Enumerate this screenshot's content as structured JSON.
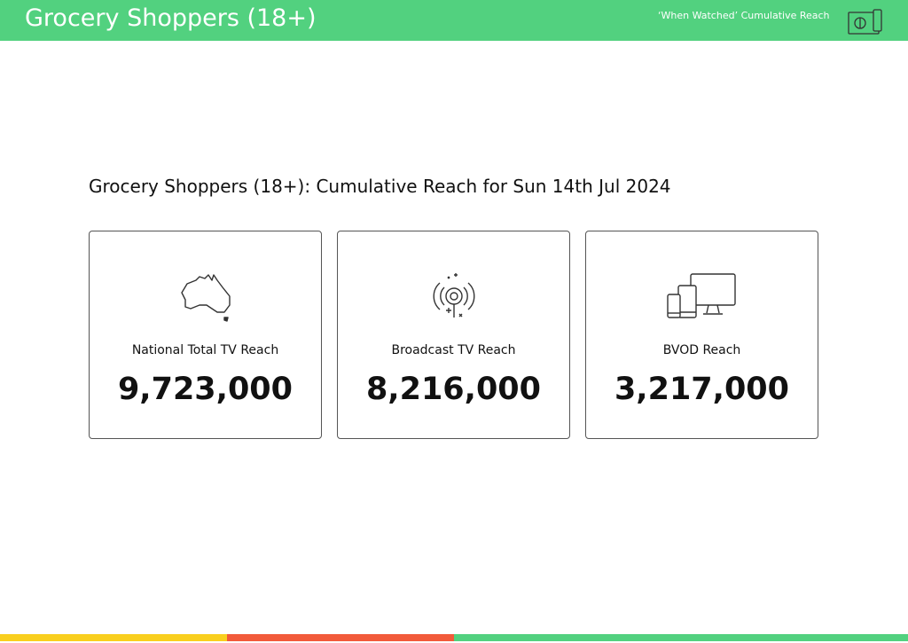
{
  "header": {
    "title": "Grocery Shoppers (18+)",
    "subtitle": "‘When Watched’ Cumulative Reach"
  },
  "section": {
    "title": "Grocery Shoppers (18+): Cumulative Reach for Sun 14th Jul 2024"
  },
  "cards": [
    {
      "label": "National Total TV Reach",
      "value": "9,723,000"
    },
    {
      "label": "Broadcast TV Reach",
      "value": "8,216,000"
    },
    {
      "label": "BVOD Reach",
      "value": "3,217,000"
    }
  ]
}
